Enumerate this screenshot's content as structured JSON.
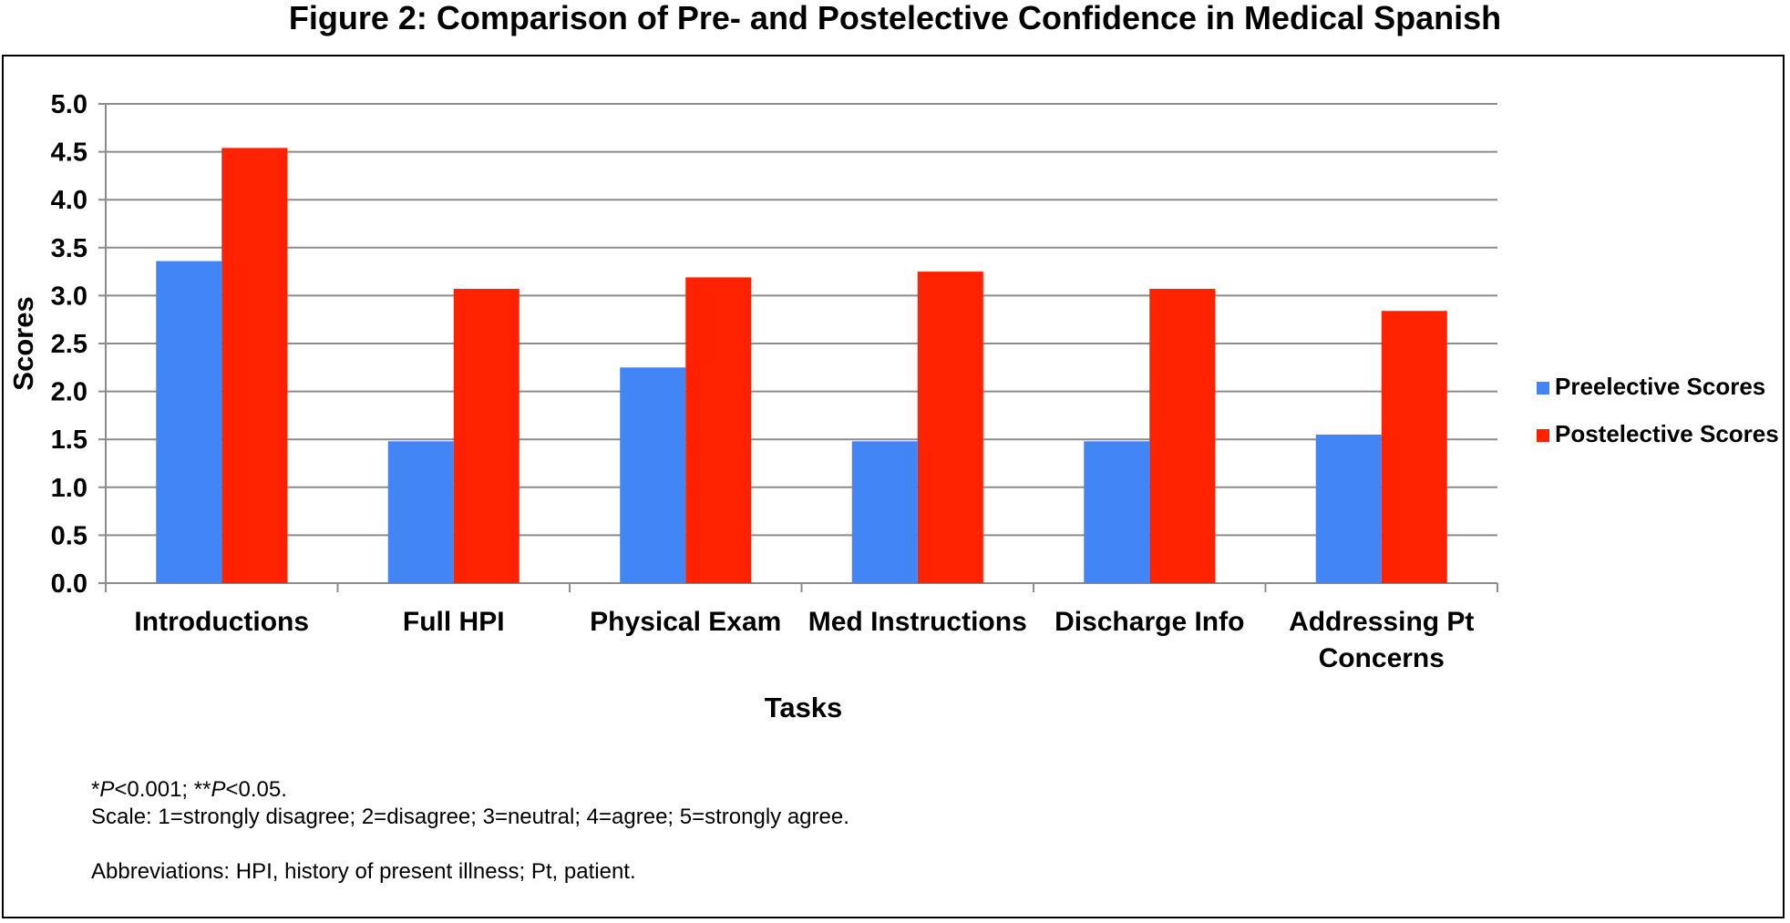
{
  "figure_title": "Figure 2: Comparison of Pre- and Postelective Confidence in Medical Spanish",
  "chart_data": {
    "type": "bar",
    "xlabel": "Tasks",
    "ylabel": "Scores",
    "ylim": [
      0,
      5
    ],
    "yticks": [
      "0.0",
      "0.5",
      "1.0",
      "1.5",
      "2.0",
      "2.5",
      "3.0",
      "3.5",
      "4.0",
      "4.5",
      "5.0"
    ],
    "grid": true,
    "legend_position": "right",
    "categories": [
      [
        "Introductions"
      ],
      [
        "Full HPI"
      ],
      [
        "Physical Exam"
      ],
      [
        "Med Instructions"
      ],
      [
        "Discharge Info"
      ],
      [
        "Addressing Pt",
        "Concerns"
      ]
    ],
    "series": [
      {
        "name": "Preelective Scores",
        "color": "#4285F4",
        "values": [
          3.36,
          1.48,
          2.25,
          1.48,
          1.48,
          1.55
        ]
      },
      {
        "name": "Postelective Scores",
        "color": "#FF2200",
        "values": [
          4.54,
          3.07,
          3.19,
          3.25,
          3.07,
          2.84
        ]
      }
    ]
  },
  "notes": {
    "p_values": {
      "p1_prefix": "*",
      "p_symbol": "P",
      "p1_rest": "<0.001; **",
      "p2_rest": "<0.05."
    },
    "scale": "Scale: 1=strongly disagree; 2=disagree; 3=neutral; 4=agree; 5=strongly agree.",
    "abbreviations": "Abbreviations: HPI, history of present illness; Pt, patient."
  }
}
